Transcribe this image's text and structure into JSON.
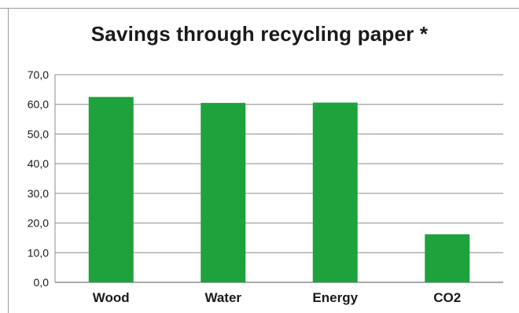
{
  "chart_data": {
    "type": "bar",
    "title": "Savings through recycling paper *",
    "categories": [
      "Wood",
      "Water",
      "Energy",
      "CO2"
    ],
    "values": [
      62.5,
      60.5,
      60.6,
      16.2
    ],
    "ylim": [
      0,
      70
    ],
    "yticks": [
      "0,0",
      "10,0",
      "20,0",
      "30,0",
      "40,0",
      "50,0",
      "60,0",
      "70,0"
    ],
    "xlabel": "",
    "ylabel": "",
    "grid": true,
    "legend": "none",
    "bar_color": "#1ea23c",
    "grid_color": "#8c8c8c"
  }
}
